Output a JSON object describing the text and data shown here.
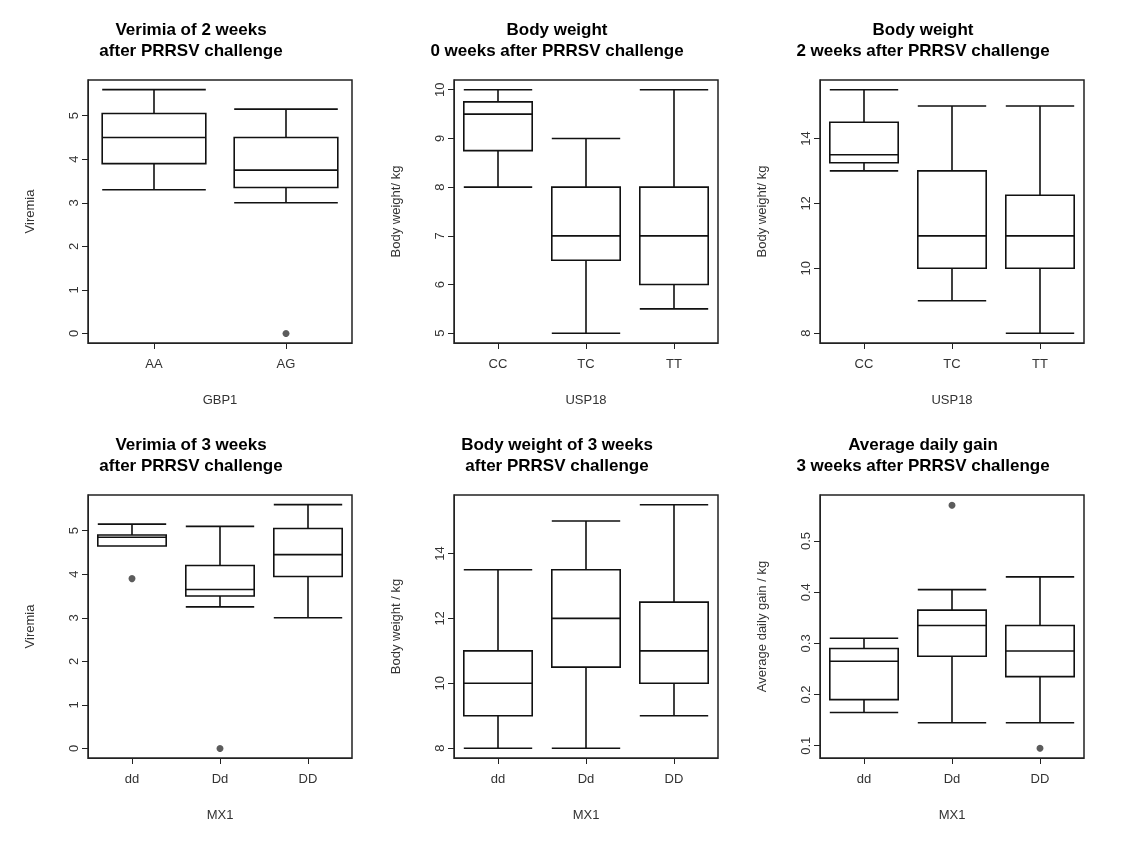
{
  "chart_data": [
    {
      "type": "box",
      "title": "Verimia of 2 weeks\nafter PRRSV challenge",
      "xlabel": "GBP1",
      "ylabel": "Viremia",
      "categories": [
        "AA",
        "AG"
      ],
      "ylim": [
        -0.22,
        5.82
      ],
      "yticks": [
        0,
        1,
        2,
        3,
        4,
        5
      ],
      "boxes": [
        {
          "low": 3.3,
          "q1": 3.9,
          "median": 4.5,
          "q3": 5.05,
          "high": 5.6
        },
        {
          "low": 3.0,
          "q1": 3.35,
          "median": 3.75,
          "q3": 4.5,
          "high": 5.15,
          "outliers": [
            0
          ]
        }
      ]
    },
    {
      "type": "box",
      "title": "Body weight\n0 weeks after PRRSV challenge",
      "xlabel": "USP18",
      "ylabel": "Body weight/ kg",
      "categories": [
        "CC",
        "TC",
        "TT"
      ],
      "ylim": [
        4.8,
        10.2
      ],
      "yticks": [
        5,
        6,
        7,
        8,
        9,
        10
      ],
      "boxes": [
        {
          "low": 8,
          "q1": 8.75,
          "median": 9.5,
          "q3": 9.75,
          "high": 10
        },
        {
          "low": 5,
          "q1": 6.5,
          "median": 7,
          "q3": 8,
          "high": 9
        },
        {
          "low": 5.5,
          "q1": 6,
          "median": 7,
          "q3": 8,
          "high": 10
        }
      ]
    },
    {
      "type": "box",
      "title": "Body weight\n2 weeks after PRRSV challenge",
      "xlabel": "USP18",
      "ylabel": "Body weight/ kg",
      "categories": [
        "CC",
        "TC",
        "TT"
      ],
      "ylim": [
        7.7,
        15.8
      ],
      "yticks": [
        8,
        10,
        12,
        14
      ],
      "boxes": [
        {
          "low": 13,
          "q1": 13.25,
          "median": 13.5,
          "q3": 14.5,
          "high": 15.5
        },
        {
          "low": 9,
          "q1": 10,
          "median": 11,
          "q3": 13,
          "high": 15
        },
        {
          "low": 8,
          "q1": 10,
          "median": 11,
          "q3": 12.25,
          "high": 15
        }
      ]
    },
    {
      "type": "box",
      "title": "Verimia of 3 weeks\nafter PRRSV challenge",
      "xlabel": "MX1",
      "ylabel": "Viremia",
      "categories": [
        "dd",
        "Dd",
        "DD"
      ],
      "ylim": [
        -0.22,
        5.82
      ],
      "yticks": [
        0,
        1,
        2,
        3,
        4,
        5
      ],
      "boxes": [
        {
          "low": 4.65,
          "q1": 4.65,
          "median": 4.85,
          "q3": 4.9,
          "high": 5.15,
          "outliers": [
            3.9
          ]
        },
        {
          "low": 3.25,
          "q1": 3.5,
          "median": 3.65,
          "q3": 4.2,
          "high": 5.1,
          "outliers": [
            0
          ]
        },
        {
          "low": 3.0,
          "q1": 3.95,
          "median": 4.45,
          "q3": 5.05,
          "high": 5.6
        }
      ]
    },
    {
      "type": "box",
      "title": "Body weight of 3 weeks\nafter PRRSV challenge",
      "xlabel": "MX1",
      "ylabel": "Body weight / kg",
      "categories": [
        "dd",
        "Dd",
        "DD"
      ],
      "ylim": [
        7.7,
        15.8
      ],
      "yticks": [
        8,
        10,
        12,
        14
      ],
      "boxes": [
        {
          "low": 8,
          "q1": 9,
          "median": 10,
          "q3": 11,
          "high": 13.5
        },
        {
          "low": 8,
          "q1": 10.5,
          "median": 12,
          "q3": 13.5,
          "high": 15
        },
        {
          "low": 9,
          "q1": 10,
          "median": 11,
          "q3": 12.5,
          "high": 15.5
        }
      ]
    },
    {
      "type": "box",
      "title": "Average daily gain\n3 weeks after PRRSV challenge",
      "xlabel": "MX1",
      "ylabel": "Average daily gain / kg",
      "categories": [
        "dd",
        "Dd",
        "DD"
      ],
      "ylim": [
        0.076,
        0.59
      ],
      "yticks": [
        0.1,
        0.2,
        0.3,
        0.4,
        0.5
      ],
      "boxes": [
        {
          "low": 0.165,
          "q1": 0.19,
          "median": 0.265,
          "q3": 0.29,
          "high": 0.31
        },
        {
          "low": 0.145,
          "q1": 0.275,
          "median": 0.335,
          "q3": 0.365,
          "high": 0.405,
          "outliers": [
            0.57
          ]
        },
        {
          "low": 0.145,
          "q1": 0.235,
          "median": 0.285,
          "q3": 0.335,
          "high": 0.43,
          "outliers": [
            0.095
          ]
        }
      ]
    }
  ]
}
